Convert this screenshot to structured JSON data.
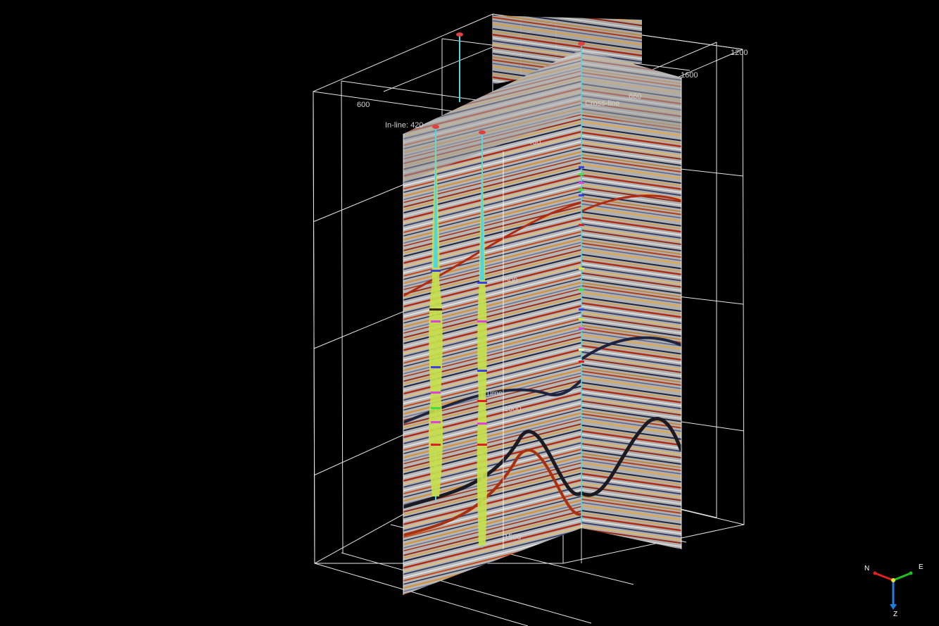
{
  "scene": {
    "axis_labels": {
      "x_600": "600",
      "x_1200": "1200",
      "y_1600": "1600",
      "inline_label": "In-line: 420",
      "crossline_label": "Cross-line",
      "inline_mark_460": "460",
      "crossline_mark_660": "660",
      "depth_500": "500",
      "depth_1000": "1000",
      "depth_1500": "1500",
      "time_label": "Time"
    },
    "colors": {
      "background": "#000000",
      "grid": "#ffffff",
      "well_trace": "#4fd6e6",
      "log_fill": "#c8e04a",
      "seismic_red": "#b22a10",
      "seismic_blue": "#2a2f4a",
      "seismic_gray": "#b8b8b8"
    }
  },
  "orientation": {
    "north": "N",
    "east": "E",
    "down": "Z"
  }
}
